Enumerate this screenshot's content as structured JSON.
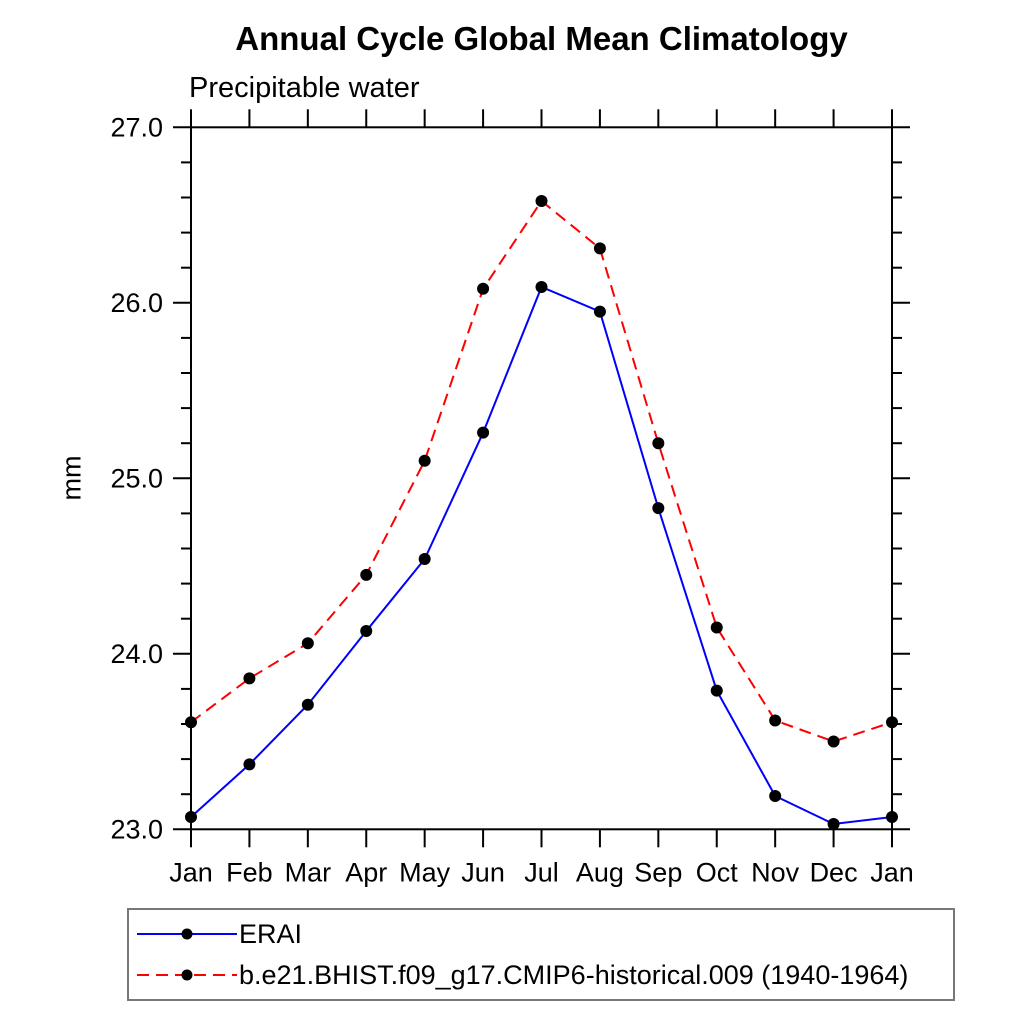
{
  "title": "Annual Cycle Global Mean Climatology",
  "subtitle": "Precipitable water",
  "chart_data": {
    "type": "line",
    "title": "Annual Cycle Global Mean Climatology",
    "subtitle": "Precipitable water",
    "ylabel": "mm",
    "xlabel": "",
    "categories": [
      "Jan",
      "Feb",
      "Mar",
      "Apr",
      "May",
      "Jun",
      "Jul",
      "Aug",
      "Sep",
      "Oct",
      "Nov",
      "Dec",
      "Jan"
    ],
    "series": [
      {
        "name": "ERAI",
        "color": "#0000ff",
        "line_style": "solid",
        "marker": "circle",
        "marker_color": "#000000",
        "values": [
          23.07,
          23.37,
          23.71,
          24.13,
          24.54,
          25.26,
          26.09,
          25.95,
          24.83,
          23.79,
          23.19,
          23.03,
          23.07
        ]
      },
      {
        "name": "b.e21.BHIST.f09_g17.CMIP6-historical.009 (1940-1964)",
        "color": "#ff0000",
        "line_style": "dashed",
        "marker": "circle",
        "marker_color": "#000000",
        "values": [
          23.61,
          23.86,
          24.06,
          24.45,
          25.1,
          26.08,
          26.58,
          26.31,
          25.2,
          24.15,
          23.62,
          23.5,
          23.61
        ]
      }
    ],
    "ylim": [
      23.0,
      27.0
    ],
    "ytick_major_step": 1.0,
    "ytick_minor_step": 0.2,
    "ytick_labels": [
      "23.0",
      "24.0",
      "25.0",
      "26.0",
      "27.0"
    ],
    "grid": "off",
    "legend_position": "bottom-left-box",
    "frame_color": "#000000",
    "text_color": "#000000"
  }
}
